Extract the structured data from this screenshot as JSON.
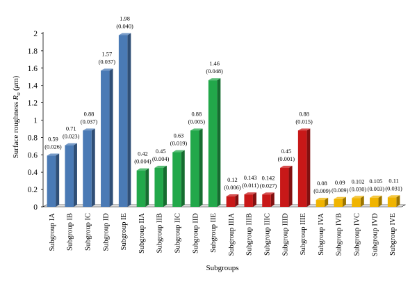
{
  "chart_data": {
    "type": "bar",
    "title": "",
    "xlabel": "Subgroups",
    "ylabel_main": "Surface roughness ",
    "ylabel_symbol": "R",
    "ylabel_sub": "a",
    "ylabel_unit_open": " (",
    "ylabel_unit_mu": "μ",
    "ylabel_unit_close": "m)",
    "ylim": [
      0,
      2
    ],
    "yticks": [
      "0",
      "0.2",
      "0.4",
      "0.6",
      "0.8",
      "1",
      "1.2",
      "1.4",
      "1.6",
      "1.8",
      "2"
    ],
    "grid": false,
    "legend": "none",
    "colors": {
      "I": "#4a7ab5",
      "II": "#22a84a",
      "III": "#c81818",
      "IV": "#f0b400"
    },
    "bars": [
      {
        "category": "Subgroup IA",
        "group": "I",
        "value": 0.59,
        "value_label": "0.59",
        "sd_label": "(0.026)"
      },
      {
        "category": "Subgroup IB",
        "group": "I",
        "value": 0.71,
        "value_label": "0.71",
        "sd_label": "(0.023)"
      },
      {
        "category": "Subgroup IC",
        "group": "I",
        "value": 0.88,
        "value_label": "0.88",
        "sd_label": "(0.037)"
      },
      {
        "category": "Subgroup ID",
        "group": "I",
        "value": 1.57,
        "value_label": "1.57",
        "sd_label": "(0.037)"
      },
      {
        "category": "Subgroup IE",
        "group": "I",
        "value": 1.98,
        "value_label": "1.98",
        "sd_label": "(0.040)"
      },
      {
        "category": "Subgroup IIA",
        "group": "II",
        "value": 0.42,
        "value_label": "0.42",
        "sd_label": "(0.004)"
      },
      {
        "category": "Subgroup IIB",
        "group": "II",
        "value": 0.45,
        "value_label": "0.45",
        "sd_label": "(0.004)"
      },
      {
        "category": "Subgroup IIC",
        "group": "II",
        "value": 0.63,
        "value_label": "0.63",
        "sd_label": "(0.019)"
      },
      {
        "category": "Subgroup IID",
        "group": "II",
        "value": 0.88,
        "value_label": "0.88",
        "sd_label": "(0.005)"
      },
      {
        "category": "Subgroup IIE",
        "group": "II",
        "value": 1.46,
        "value_label": "1.46",
        "sd_label": "(0.048)"
      },
      {
        "category": "Subgroup IIIA",
        "group": "III",
        "value": 0.12,
        "value_label": "0.12",
        "sd_label": "(0.006)"
      },
      {
        "category": "Subgroup IIIB",
        "group": "III",
        "value": 0.143,
        "value_label": "0.143",
        "sd_label": "(0.011)"
      },
      {
        "category": "Subgroup IIIC",
        "group": "III",
        "value": 0.142,
        "value_label": "0.142",
        "sd_label": "(0.027)"
      },
      {
        "category": "Subgroup IIID",
        "group": "III",
        "value": 0.45,
        "value_label": "0.45",
        "sd_label": "(0.001)"
      },
      {
        "category": "Subgroup IIIE",
        "group": "III",
        "value": 0.88,
        "value_label": "0.88",
        "sd_label": "(0.015)"
      },
      {
        "category": "Subgroup IVA",
        "group": "IV",
        "value": 0.08,
        "value_label": "0.08",
        "sd_label": "(0.009)"
      },
      {
        "category": "Subgroup IVB",
        "group": "IV",
        "value": 0.09,
        "value_label": "0.09",
        "sd_label": "(0.009)"
      },
      {
        "category": "Subgroup IVC",
        "group": "IV",
        "value": 0.102,
        "value_label": "0.102",
        "sd_label": "(0.030)"
      },
      {
        "category": "Subgroup IVD",
        "group": "IV",
        "value": 0.105,
        "value_label": "0.105",
        "sd_label": "(0.003)"
      },
      {
        "category": "Subgroup IVE",
        "group": "IV",
        "value": 0.11,
        "value_label": "0.11",
        "sd_label": "(0.031)"
      }
    ]
  }
}
